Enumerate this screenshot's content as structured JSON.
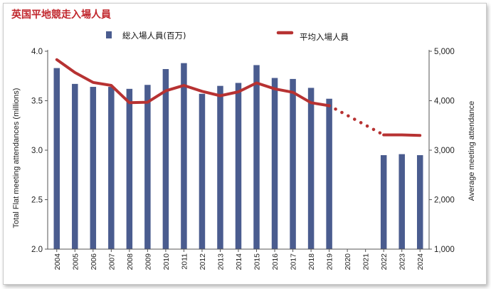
{
  "header": {
    "title": "英国平地競走入場人員"
  },
  "colors": {
    "bar": "#4a5c8f",
    "line": "#b73232",
    "title": "#c1272d",
    "axis": "#555555"
  },
  "chart_data": {
    "type": "bar+line",
    "title": "英国平地競走入場人員",
    "categories": [
      "2004",
      "2005",
      "2006",
      "2007",
      "2008",
      "2009",
      "2010",
      "2011",
      "2012",
      "2013",
      "2014",
      "2015",
      "2016",
      "2017",
      "2018",
      "2019",
      "2020",
      "2021",
      "2022",
      "2023",
      "2024"
    ],
    "series": [
      {
        "name": "総入場人員(百万)",
        "type": "bar",
        "axis": "left",
        "values": [
          3.83,
          3.67,
          3.64,
          3.64,
          3.62,
          3.66,
          3.82,
          3.88,
          3.57,
          3.65,
          3.68,
          3.86,
          3.73,
          3.72,
          3.63,
          3.52,
          null,
          null,
          2.95,
          2.96,
          2.95
        ]
      },
      {
        "name": "平均入場人員",
        "type": "line",
        "axis": "right",
        "values": [
          4830,
          4570,
          4370,
          4310,
          3960,
          3970,
          4200,
          4310,
          4190,
          4100,
          4180,
          4360,
          4240,
          4170,
          3960,
          3900,
          null,
          null,
          3310,
          3310,
          3300
        ],
        "dotted_between": [
          "2019",
          "2022"
        ]
      }
    ],
    "ylabel_left": "Total Flat meeting attendances (millions)",
    "ylabel_right": "Average meeting attendance",
    "ylim_left": [
      2.0,
      4.0
    ],
    "ylim_right": [
      1000,
      5000
    ],
    "yticks_left": [
      "2.0",
      "2.5",
      "3.0",
      "3.5",
      "4.0"
    ],
    "yticks_right": [
      "1,000",
      "2,000",
      "3,000",
      "4,000",
      "5,000"
    ],
    "legend": {
      "position": "top",
      "bar_label": "総入場人員(百万)",
      "line_label": "平均入場人員"
    },
    "grid": false
  }
}
